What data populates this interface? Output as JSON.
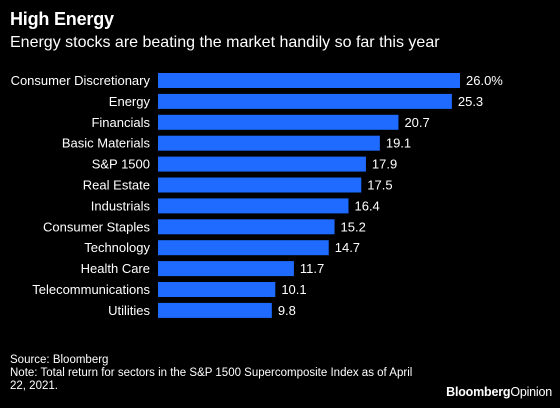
{
  "header": {
    "title": "High Energy",
    "subtitle": "Energy stocks are beating the market handily so far this year"
  },
  "footer": {
    "source": "Source: Bloomberg",
    "note": "Note: Total return for sectors in the S&P 1500 Supercomposite Index as of April 22, 2021.",
    "brand_primary": "Bloomberg",
    "brand_secondary": "Opinion"
  },
  "colors": {
    "background": "#000000",
    "bar": "#1f6bff",
    "text": "#ffffff"
  },
  "chart_data": {
    "type": "bar",
    "orientation": "horizontal",
    "categories": [
      "Consumer Discretionary",
      "Energy",
      "Financials",
      "Basic Materials",
      "S&P 1500",
      "Real Estate",
      "Industrials",
      "Consumer Staples",
      "Technology",
      "Health Care",
      "Telecommunications",
      "Utilities"
    ],
    "values": [
      26.0,
      25.3,
      20.7,
      19.1,
      17.9,
      17.5,
      16.4,
      15.2,
      14.7,
      11.7,
      10.1,
      9.8
    ],
    "value_labels": [
      "26.0%",
      "25.3",
      "20.7",
      "19.1",
      "17.9",
      "17.5",
      "16.4",
      "15.2",
      "14.7",
      "11.7",
      "10.1",
      "9.8"
    ],
    "xlim": [
      0,
      26.0
    ],
    "grid": false,
    "legend": "none"
  }
}
